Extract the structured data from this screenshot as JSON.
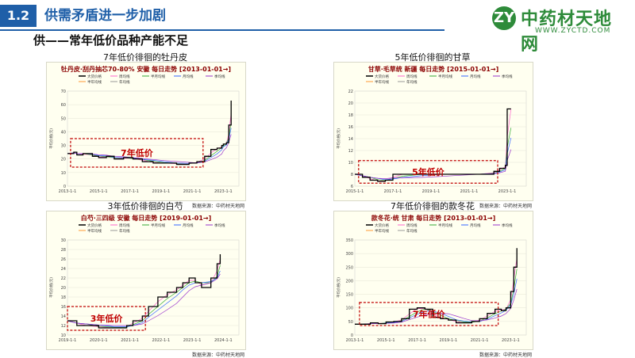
{
  "header": {
    "section_number": "1.2",
    "section_title": "供需矛盾进一步加剧",
    "subtitle": "供——常年低价品种产能不足"
  },
  "logo": {
    "name": "中药材天地网",
    "url": "WWW.ZYCTD.COM",
    "mark": "ZY"
  },
  "legend_labels": [
    "大货价格",
    "周均线",
    "半月均线",
    "月均线",
    "季均线",
    "半年均线",
    "年均线"
  ],
  "colors": {
    "accent": "#1f5fa8",
    "price": "#000000",
    "annotation": "#c00000",
    "chart_title": "#8b0000"
  },
  "charts": [
    {
      "title": "7年低价徘徊的牡丹皮",
      "source": "数据来源：中药材天地网",
      "annotation": "7年低价"
    },
    {
      "title": "5年低价徘徊的甘草",
      "source": "数据来源：中药材天地网",
      "annotation": "5年低价"
    },
    {
      "title": "3年低价徘徊的白芍",
      "source": "数据来源：中药材天地网",
      "annotation": "3年低价"
    },
    {
      "title": "7年低价徘徊的款冬花",
      "source": "数据来源：中药材天地网",
      "annotation": "7年低价"
    }
  ],
  "chart_data": [
    {
      "type": "line",
      "title": "牡丹皮·刮丹抽芯70-80% 安徽 每日走势 [2013-01-01→]",
      "ylabel": "平均价格(元)",
      "ylim": [
        0,
        70
      ],
      "yticks": [
        0,
        10,
        20,
        30,
        40,
        50,
        60,
        70
      ],
      "xlim": [
        2013,
        2024
      ],
      "xticks": [
        2013,
        2015,
        2017,
        2019,
        2021,
        2023
      ],
      "xtick_labels": [
        "2013-1-1",
        "2015-1-1",
        "2017-1-1",
        "2019-1-1",
        "2021-1-1",
        "2023-1-1"
      ],
      "highlight": {
        "x": [
          2013.2,
          2021.7
        ],
        "y": [
          14,
          35
        ]
      },
      "series": [
        {
          "name": "大货价格",
          "x": [
            2013.0,
            2013.4,
            2013.6,
            2014.0,
            2014.6,
            2015.0,
            2015.5,
            2016.0,
            2016.6,
            2017.2,
            2017.8,
            2018.5,
            2019.2,
            2020.0,
            2020.8,
            2021.3,
            2021.8,
            2022.2,
            2022.6,
            2022.9,
            2023.0,
            2023.2,
            2023.35,
            2023.5
          ],
          "values": [
            24,
            25,
            23,
            24,
            22,
            21,
            22,
            20,
            21,
            20,
            18,
            17,
            17,
            16,
            17,
            18,
            22,
            27,
            28,
            30,
            31,
            32,
            45,
            63
          ]
        }
      ]
    },
    {
      "type": "line",
      "title": "甘草·毛草统 新疆 每日走势 [2015-01-01→]",
      "ylabel": "平均价格(元)",
      "ylim": [
        6,
        22
      ],
      "yticks": [
        6,
        8,
        10,
        12,
        14,
        16,
        18,
        20,
        22
      ],
      "xlim": [
        2015,
        2024
      ],
      "xticks": [
        2015,
        2017,
        2019,
        2021,
        2023
      ],
      "xtick_labels": [
        "2015-1-1",
        "2017-1-1",
        "2019-1-1",
        "2021-1-1",
        "2023-1-1"
      ],
      "highlight": {
        "x": [
          2015.2,
          2022.5
        ],
        "y": [
          6.5,
          10.3
        ]
      },
      "series": [
        {
          "name": "大货价格",
          "x": [
            2015.0,
            2015.4,
            2015.8,
            2016.2,
            2016.6,
            2017.0,
            2017.5,
            2018.5,
            2019.5,
            2020.5,
            2021.5,
            2022.3,
            2022.6,
            2022.9,
            2023.0,
            2023.2
          ],
          "values": [
            8,
            7.5,
            7,
            6.8,
            7,
            8,
            8,
            8,
            8,
            8,
            8,
            8.5,
            9,
            9.5,
            19,
            19
          ]
        }
      ]
    },
    {
      "type": "line",
      "title": "白芍·三四级 安徽 每日走势 [2019-01-01→]",
      "ylabel": "平均价格(元)",
      "ylim": [
        10,
        30
      ],
      "yticks": [
        10,
        12,
        14,
        16,
        18,
        20,
        22,
        24,
        26,
        28,
        30
      ],
      "xlim": [
        2019,
        2024.5
      ],
      "xticks": [
        2019,
        2020,
        2021,
        2022,
        2023,
        2024
      ],
      "xtick_labels": [
        "2019-1-1",
        "2020-1-1",
        "2021-1-1",
        "2022-1-1",
        "2023-1-1",
        "2024-1-1"
      ],
      "highlight": {
        "x": [
          2019.0,
          2021.5
        ],
        "y": [
          11,
          16
        ]
      },
      "series": [
        {
          "name": "大货价格",
          "x": [
            2019.0,
            2019.3,
            2019.6,
            2020.0,
            2020.5,
            2020.9,
            2021.1,
            2021.4,
            2021.6,
            2021.9,
            2022.2,
            2022.5,
            2022.7,
            2022.9,
            2023.1,
            2023.3,
            2023.6,
            2023.8,
            2023.9
          ],
          "values": [
            13,
            12,
            12,
            11.5,
            11.5,
            12,
            13,
            14,
            16,
            18,
            19,
            20,
            21,
            22,
            21,
            20,
            22,
            25,
            27
          ]
        }
      ]
    },
    {
      "type": "line",
      "title": "款冬花·统 甘肃 每日走势 [2013-01-01→]",
      "ylabel": "平均价格(元)",
      "ylim": [
        0,
        350
      ],
      "yticks": [
        0,
        50,
        100,
        150,
        200,
        250,
        300,
        350
      ],
      "xlim": [
        2013,
        2024
      ],
      "xticks": [
        2013,
        2015,
        2017,
        2019,
        2021,
        2023
      ],
      "xtick_labels": [
        "2013-1-1",
        "2015-1-1",
        "2017-1-1",
        "2019-1-1",
        "2021-1-1",
        "2023-1-1"
      ],
      "highlight": {
        "x": [
          2013.3,
          2022.2
        ],
        "y": [
          35,
          120
        ]
      },
      "series": [
        {
          "name": "大货价格",
          "x": [
            2013.0,
            2013.5,
            2014.0,
            2014.5,
            2015.0,
            2015.5,
            2016.0,
            2016.5,
            2017.0,
            2017.5,
            2018.0,
            2018.5,
            2019.0,
            2019.5,
            2020.0,
            2020.5,
            2021.0,
            2021.5,
            2022.0,
            2022.4,
            2022.7,
            2023.0,
            2023.2,
            2023.4
          ],
          "values": [
            40,
            40,
            45,
            42,
            48,
            50,
            60,
            95,
            100,
            95,
            65,
            60,
            55,
            45,
            45,
            50,
            60,
            80,
            95,
            90,
            100,
            160,
            250,
            320
          ]
        }
      ]
    }
  ]
}
